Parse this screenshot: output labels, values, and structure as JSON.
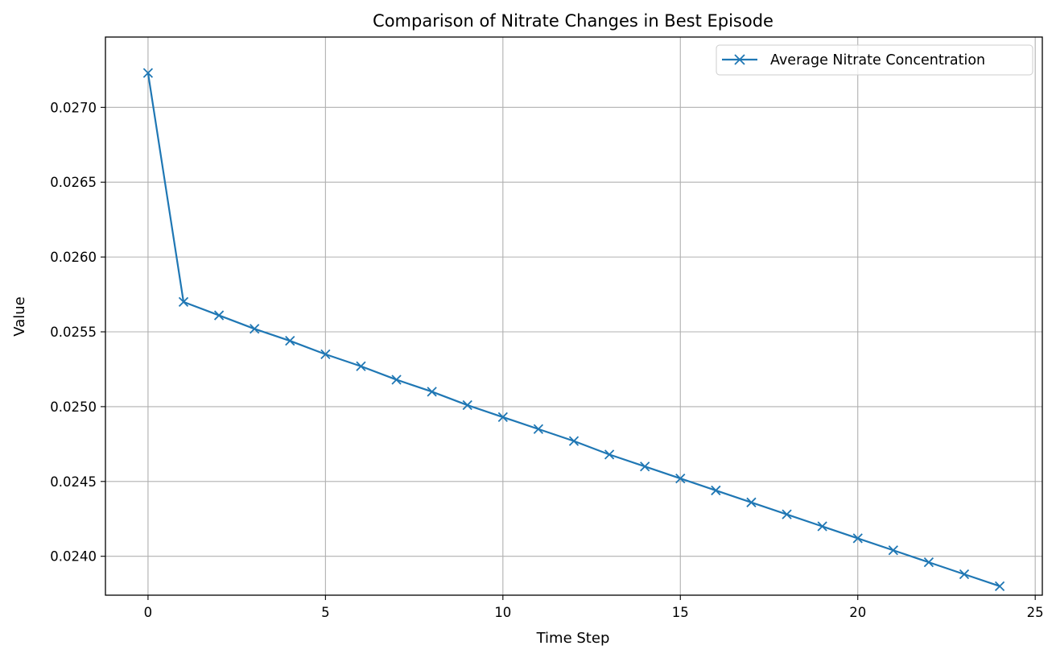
{
  "chart_data": {
    "type": "line",
    "title": "Comparison of Nitrate Changes in Best Episode",
    "xlabel": "Time Step",
    "ylabel": "Value",
    "xlim": [
      -1.2,
      25.2
    ],
    "ylim": [
      0.02374,
      0.02747
    ],
    "xticks": [
      0,
      5,
      10,
      15,
      20,
      25
    ],
    "xtick_labels": [
      "0",
      "5",
      "10",
      "15",
      "20",
      "25"
    ],
    "yticks": [
      0.024,
      0.0245,
      0.025,
      0.0255,
      0.026,
      0.0265,
      0.027
    ],
    "ytick_labels": [
      "0.0240",
      "0.0245",
      "0.0250",
      "0.0255",
      "0.0260",
      "0.0265",
      "0.0270"
    ],
    "grid": true,
    "legend_position": "top-right",
    "series": [
      {
        "name": "Average Nitrate Concentration",
        "color": "#1f77b4",
        "marker": "x",
        "x": [
          0,
          1,
          2,
          3,
          4,
          5,
          6,
          7,
          8,
          9,
          10,
          11,
          12,
          13,
          14,
          15,
          16,
          17,
          18,
          19,
          20,
          21,
          22,
          23,
          24
        ],
        "y": [
          0.02723,
          0.0257,
          0.02561,
          0.02552,
          0.02544,
          0.02535,
          0.02527,
          0.02518,
          0.0251,
          0.02501,
          0.02493,
          0.02485,
          0.02477,
          0.02468,
          0.0246,
          0.02452,
          0.02444,
          0.02436,
          0.02428,
          0.0242,
          0.02412,
          0.02404,
          0.02396,
          0.02388,
          0.0238
        ]
      }
    ]
  }
}
